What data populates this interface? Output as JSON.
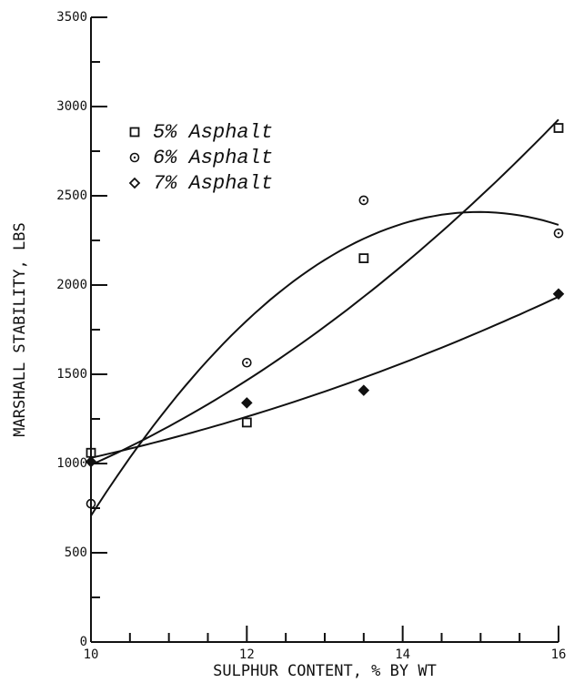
{
  "chart_data": {
    "type": "scatter",
    "x_label": "SULPHUR CONTENT, % BY WT",
    "y_label": "MARSHALL STABILITY, LBS",
    "xlim": [
      10,
      16
    ],
    "xticks": [
      10,
      12,
      14,
      16
    ],
    "ylim": [
      0,
      3500
    ],
    "yticks": [
      0,
      500,
      1000,
      1500,
      2000,
      2500,
      3000,
      3500
    ],
    "fit_curves": true,
    "series": [
      {
        "name": "5% Asphalt",
        "marker": "square",
        "color": "#111111",
        "x": [
          10,
          12,
          13.5,
          16
        ],
        "values": [
          1060,
          1230,
          2150,
          2880
        ]
      },
      {
        "name": "6% Asphalt",
        "marker": "circle",
        "color": "#111111",
        "x": [
          10,
          12,
          13.5,
          16
        ],
        "values": [
          775,
          1565,
          2475,
          2290
        ]
      },
      {
        "name": "7% Asphalt",
        "marker": "diamond",
        "color": "#111111",
        "x": [
          10,
          12,
          13.5,
          16
        ],
        "values": [
          1010,
          1340,
          1410,
          1950
        ]
      }
    ]
  }
}
